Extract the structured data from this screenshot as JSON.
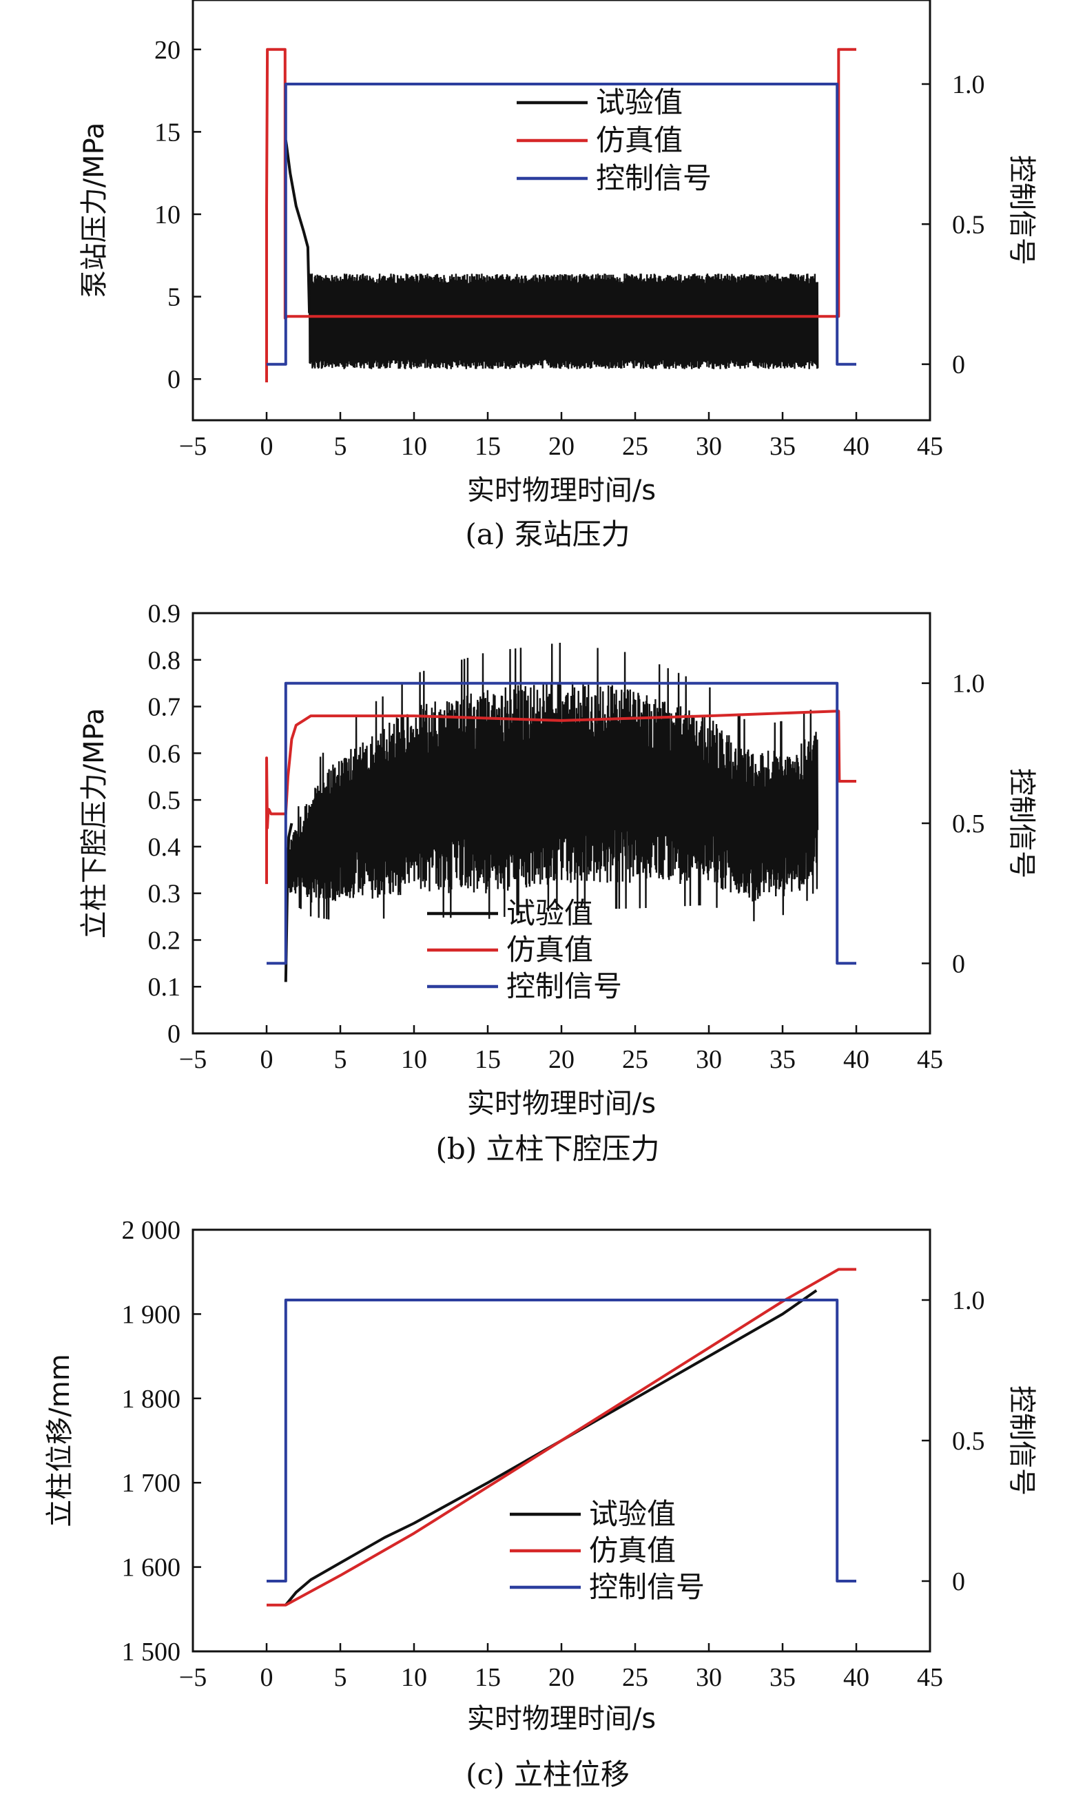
{
  "chart_data": [
    {
      "type": "line",
      "caption": "(a) 泵站压力",
      "xlabel": "实时物理时间/s",
      "ylabel": "泵站压力/MPa",
      "y2label": "控制信号",
      "xlim": [
        -5,
        45
      ],
      "ylim": [
        -2.5,
        23
      ],
      "y2lim": [
        -0.2,
        1.3
      ],
      "xticks": [
        "−5",
        "0",
        "5",
        "10",
        "15",
        "20",
        "25",
        "30",
        "35",
        "40",
        "45"
      ],
      "yticks": [
        "0",
        "5",
        "10",
        "15",
        "20"
      ],
      "y2ticks": [
        "0",
        "0.5",
        "1.0"
      ],
      "legend_position": "upper-middle-right",
      "series": [
        {
          "name": "试验值",
          "color": "#111111",
          "axis": "left",
          "noise": {
            "t_start": 2.9,
            "t_end": 37.4,
            "band_low": [
              0.6,
              1.2
            ],
            "band_high": [
              5.8,
              6.4
            ]
          },
          "x": [
            1.3,
            1.35,
            1.6,
            2.0,
            2.5,
            2.8,
            2.9
          ],
          "y": [
            14.5,
            14.2,
            12.5,
            10.5,
            9.0,
            8.0,
            4.0
          ]
        },
        {
          "name": "仿真值",
          "color": "#d62728",
          "axis": "left",
          "x": [
            0,
            0,
            0.05,
            1.25,
            1.25,
            1.4,
            38.8,
            38.8,
            40
          ],
          "y": [
            -0.2,
            10.5,
            20,
            20,
            3.7,
            3.8,
            3.8,
            20,
            20
          ]
        },
        {
          "name": "控制信号",
          "color": "#2c3e9e",
          "axis": "right",
          "x": [
            0,
            1.3,
            1.3,
            38.7,
            38.7,
            40
          ],
          "y": [
            0,
            0,
            1,
            1,
            0,
            0
          ]
        }
      ]
    },
    {
      "type": "line",
      "caption": "(b) 立柱下腔压力",
      "xlabel": "实时物理时间/s",
      "ylabel": "立柱下腔压力/MPa",
      "y2label": "控制信号",
      "xlim": [
        -5,
        45
      ],
      "ylim": [
        0,
        0.9
      ],
      "y2lim": [
        -0.25,
        1.25
      ],
      "xticks": [
        "−5",
        "0",
        "5",
        "10",
        "15",
        "20",
        "25",
        "30",
        "35",
        "40",
        "45"
      ],
      "yticks": [
        "0",
        "0.1",
        "0.2",
        "0.3",
        "0.4",
        "0.5",
        "0.6",
        "0.7",
        "0.8",
        "0.9"
      ],
      "y2ticks": [
        "0",
        "0.5",
        "1.0"
      ],
      "legend_position": "lower-middle",
      "series": [
        {
          "name": "试验值",
          "color": "#111111",
          "axis": "left",
          "noise": {
            "t_start": 1.4,
            "t_end": 37.4,
            "center": [
              [
                1.4,
                0.35
              ],
              [
                3,
                0.4
              ],
              [
                5,
                0.44
              ],
              [
                10,
                0.5
              ],
              [
                15,
                0.52
              ],
              [
                20,
                0.54
              ],
              [
                25,
                0.53
              ],
              [
                30,
                0.5
              ],
              [
                33,
                0.44
              ],
              [
                36,
                0.46
              ],
              [
                37.4,
                0.5
              ]
            ],
            "amp": [
              [
                1.4,
                0.05
              ],
              [
                3,
                0.12
              ],
              [
                5,
                0.16
              ],
              [
                10,
                0.2
              ],
              [
                15,
                0.22
              ],
              [
                20,
                0.22
              ],
              [
                25,
                0.21
              ],
              [
                30,
                0.18
              ],
              [
                33,
                0.16
              ],
              [
                36,
                0.16
              ],
              [
                37.4,
                0.15
              ]
            ]
          },
          "x": [
            1.3,
            1.4,
            1.5,
            1.7
          ],
          "y": [
            0.11,
            0.3,
            0.42,
            0.45
          ]
        },
        {
          "name": "仿真值",
          "color": "#d62728",
          "axis": "left",
          "x": [
            0,
            0,
            0.05,
            0.1,
            0.15,
            0.3,
            1.3,
            1.45,
            1.7,
            2.0,
            2.5,
            3,
            5,
            10,
            20,
            30,
            38.7,
            38.8,
            38.85,
            40
          ],
          "y": [
            0.32,
            0.59,
            0.44,
            0.47,
            0.48,
            0.47,
            0.47,
            0.55,
            0.63,
            0.66,
            0.67,
            0.68,
            0.68,
            0.68,
            0.67,
            0.68,
            0.69,
            0.69,
            0.54,
            0.54
          ]
        },
        {
          "name": "控制信号",
          "color": "#2c3e9e",
          "axis": "right",
          "x": [
            0,
            1.3,
            1.3,
            38.7,
            38.7,
            40
          ],
          "y": [
            0,
            0,
            1,
            1,
            0,
            0
          ]
        }
      ]
    },
    {
      "type": "line",
      "caption": "(c) 立柱位移",
      "xlabel": "实时物理时间/s",
      "ylabel": "立柱位移/mm",
      "y2label": "控制信号",
      "xlim": [
        -5,
        45
      ],
      "ylim": [
        1500,
        2000
      ],
      "y2lim": [
        -0.25,
        1.25
      ],
      "xticks": [
        "−5",
        "0",
        "5",
        "10",
        "15",
        "20",
        "25",
        "30",
        "35",
        "40",
        "45"
      ],
      "yticks": [
        "1 500",
        "1 600",
        "1 700",
        "1 800",
        "1 900",
        "2 000"
      ],
      "y2ticks": [
        "0",
        "0.5",
        "1.0"
      ],
      "legend_position": "lower-right",
      "series": [
        {
          "name": "试验值",
          "color": "#111111",
          "axis": "left",
          "x": [
            1.3,
            2,
            3,
            5,
            8,
            10,
            15,
            20,
            25,
            30,
            35,
            37.3
          ],
          "y": [
            1555,
            1570,
            1585,
            1605,
            1635,
            1652,
            1700,
            1750,
            1800,
            1850,
            1900,
            1928
          ]
        },
        {
          "name": "仿真值",
          "color": "#d62728",
          "axis": "left",
          "x": [
            0,
            1.3,
            5,
            10,
            15,
            20,
            25,
            30,
            35,
            38.8,
            40
          ],
          "y": [
            1555,
            1555,
            1590,
            1640,
            1695,
            1750,
            1805,
            1860,
            1915,
            1953,
            1953
          ]
        },
        {
          "name": "控制信号",
          "color": "#2c3e9e",
          "axis": "right",
          "x": [
            0,
            1.3,
            1.3,
            38.7,
            38.7,
            40
          ],
          "y": [
            0,
            0,
            1,
            1,
            0,
            0
          ]
        }
      ]
    }
  ]
}
